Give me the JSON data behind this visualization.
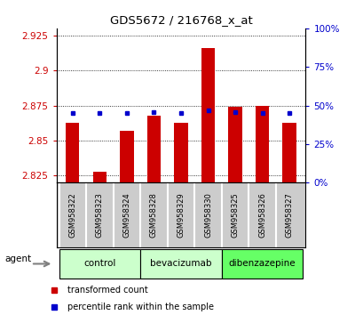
{
  "title": "GDS5672 / 216768_x_at",
  "samples": [
    "GSM958322",
    "GSM958323",
    "GSM958324",
    "GSM958328",
    "GSM958329",
    "GSM958330",
    "GSM958325",
    "GSM958326",
    "GSM958327"
  ],
  "transformed_counts": [
    2.863,
    2.828,
    2.857,
    2.868,
    2.863,
    2.916,
    2.874,
    2.875,
    2.863
  ],
  "percentile_ranks": [
    45,
    45,
    45,
    46,
    45,
    47,
    46,
    45,
    45
  ],
  "group_configs": [
    {
      "name": "control",
      "start": 0,
      "end": 2,
      "color": "#ccffcc"
    },
    {
      "name": "bevacizumab",
      "start": 3,
      "end": 5,
      "color": "#ccffcc"
    },
    {
      "name": "dibenzazepine",
      "start": 6,
      "end": 8,
      "color": "#66ff66"
    }
  ],
  "bar_color": "#cc0000",
  "dot_color": "#0000cc",
  "ylim_left": [
    2.82,
    2.93
  ],
  "ylim_right": [
    0,
    100
  ],
  "yticks_left": [
    2.825,
    2.85,
    2.875,
    2.9,
    2.925
  ],
  "yticks_right": [
    0,
    25,
    50,
    75,
    100
  ],
  "ytick_labels_right": [
    "0%",
    "25%",
    "50%",
    "75%",
    "100%"
  ],
  "ylabel_left_color": "#cc0000",
  "ylabel_right_color": "#0000cc",
  "baseline": 2.82,
  "bar_width": 0.5,
  "sample_area_color": "#cccccc",
  "legend_items": [
    {
      "label": "transformed count",
      "color": "#cc0000"
    },
    {
      "label": "percentile rank within the sample",
      "color": "#0000cc"
    }
  ],
  "agent_label": "agent"
}
